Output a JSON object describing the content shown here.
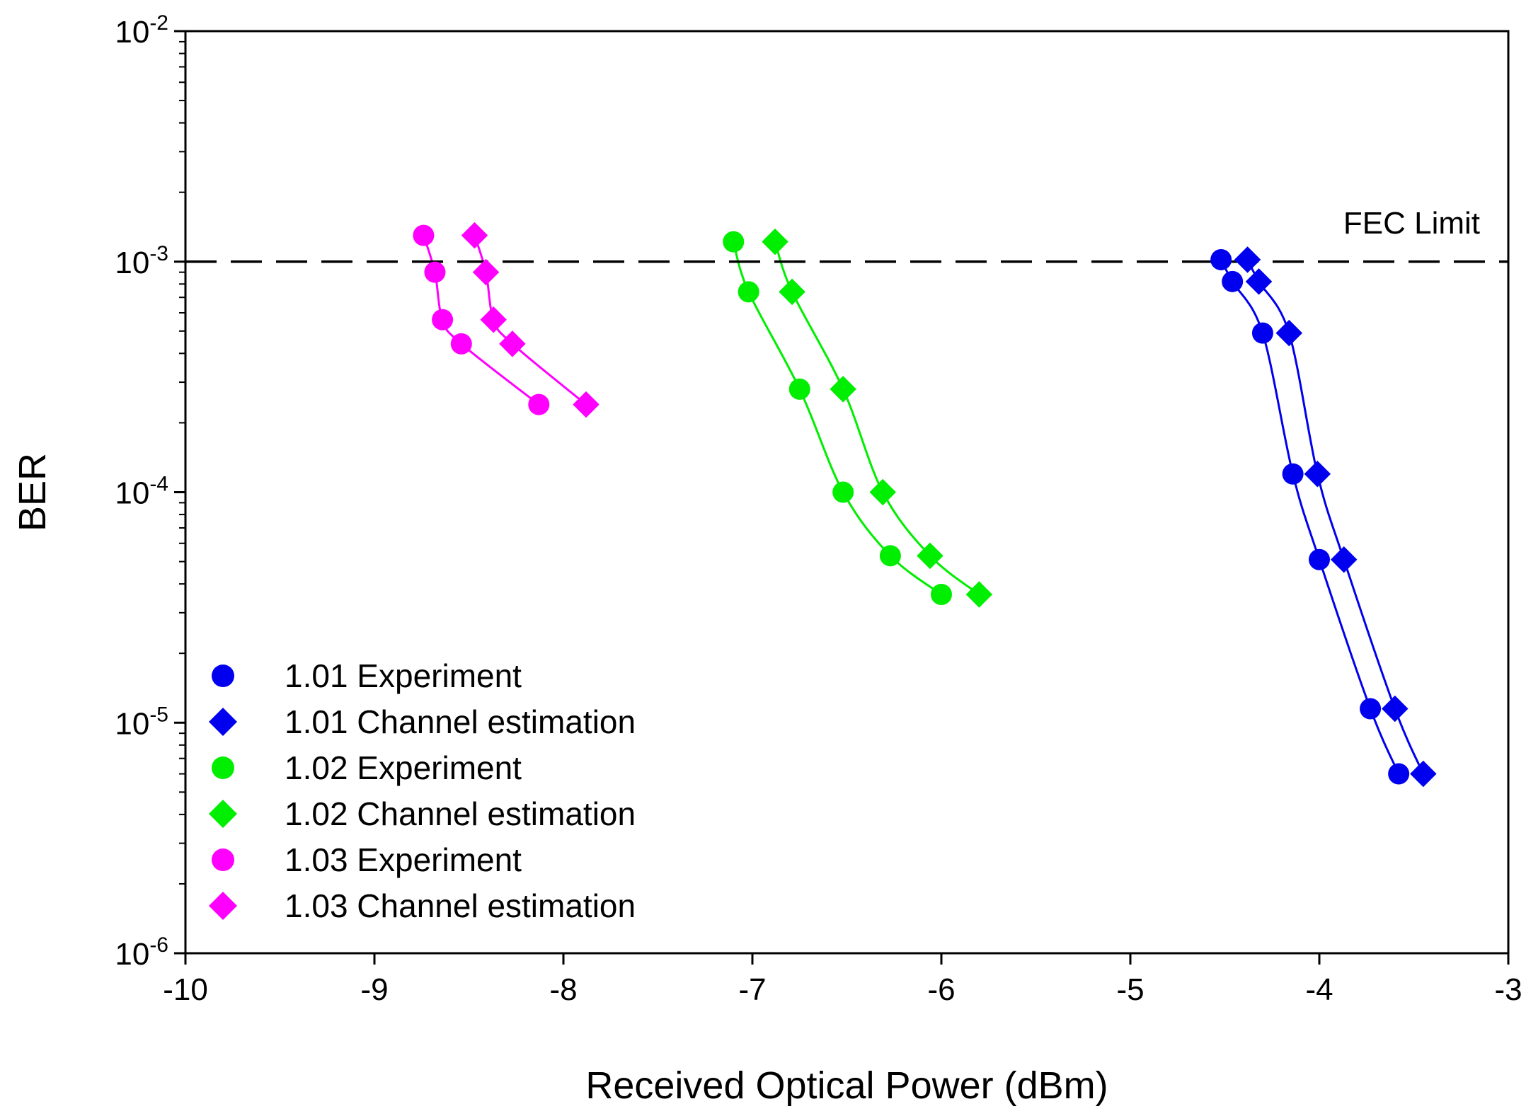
{
  "chart_data": {
    "type": "scatter",
    "title": "",
    "xlabel": "Received Optical Power (dBm)",
    "ylabel": "BER",
    "xlim": [
      -10,
      -3
    ],
    "ylim": [
      1e-06,
      0.01
    ],
    "yscale": "log",
    "x_ticks": [
      -10,
      -9,
      -8,
      -7,
      -6,
      -5,
      -4,
      -3
    ],
    "x_tick_labels": [
      "-10",
      "-9",
      "-8",
      "-7",
      "-6",
      "-5",
      "-4",
      "-3"
    ],
    "y_ticks": [
      {
        "value": 1e-06,
        "base": "10",
        "exp": "-6"
      },
      {
        "value": 1e-05,
        "base": "10",
        "exp": "-5"
      },
      {
        "value": 0.0001,
        "base": "10",
        "exp": "-4"
      },
      {
        "value": 0.001,
        "base": "10",
        "exp": "-3"
      },
      {
        "value": 0.01,
        "base": "10",
        "exp": "-2"
      }
    ],
    "grid": false,
    "legend_position": "bottom-left",
    "reference_line": {
      "y": 0.001,
      "label": "FEC Limit",
      "style": "dashed"
    },
    "series": [
      {
        "name": "1.01 Experiment",
        "marker": "circle",
        "color": "#0000ee",
        "x": [
          -4.52,
          -4.46,
          -4.3,
          -4.14,
          -4.0,
          -3.73,
          -3.58
        ],
        "y": [
          0.00102,
          0.00082,
          0.00049,
          0.00012,
          5.1e-05,
          1.15e-05,
          6e-06
        ]
      },
      {
        "name": "1.01 Channel estimation",
        "marker": "diamond",
        "color": "#0000ee",
        "x": [
          -4.38,
          -4.32,
          -4.16,
          -4.01,
          -3.87,
          -3.6,
          -3.45
        ],
        "y": [
          0.00102,
          0.00082,
          0.00049,
          0.00012,
          5.1e-05,
          1.15e-05,
          6e-06
        ]
      },
      {
        "name": "1.02 Experiment",
        "marker": "circle",
        "color": "#00ee00",
        "x": [
          -7.1,
          -7.02,
          -6.75,
          -6.52,
          -6.27,
          -6.0
        ],
        "y": [
          0.00122,
          0.00074,
          0.00028,
          0.0001,
          5.3e-05,
          3.6e-05
        ]
      },
      {
        "name": "1.02 Channel estimation",
        "marker": "diamond",
        "color": "#00ee00",
        "x": [
          -6.88,
          -6.79,
          -6.52,
          -6.31,
          -6.06,
          -5.8
        ],
        "y": [
          0.00122,
          0.00074,
          0.00028,
          0.0001,
          5.3e-05,
          3.6e-05
        ]
      },
      {
        "name": "1.03 Experiment",
        "marker": "circle",
        "color": "#ff00ff",
        "x": [
          -8.74,
          -8.68,
          -8.64,
          -8.54,
          -8.13
        ],
        "y": [
          0.0013,
          0.0009,
          0.00056,
          0.00044,
          0.00024
        ]
      },
      {
        "name": "1.03 Channel estimation",
        "marker": "diamond",
        "color": "#ff00ff",
        "x": [
          -8.47,
          -8.41,
          -8.37,
          -8.27,
          -7.88
        ],
        "y": [
          0.0013,
          0.0009,
          0.00056,
          0.00044,
          0.00024
        ]
      }
    ]
  }
}
